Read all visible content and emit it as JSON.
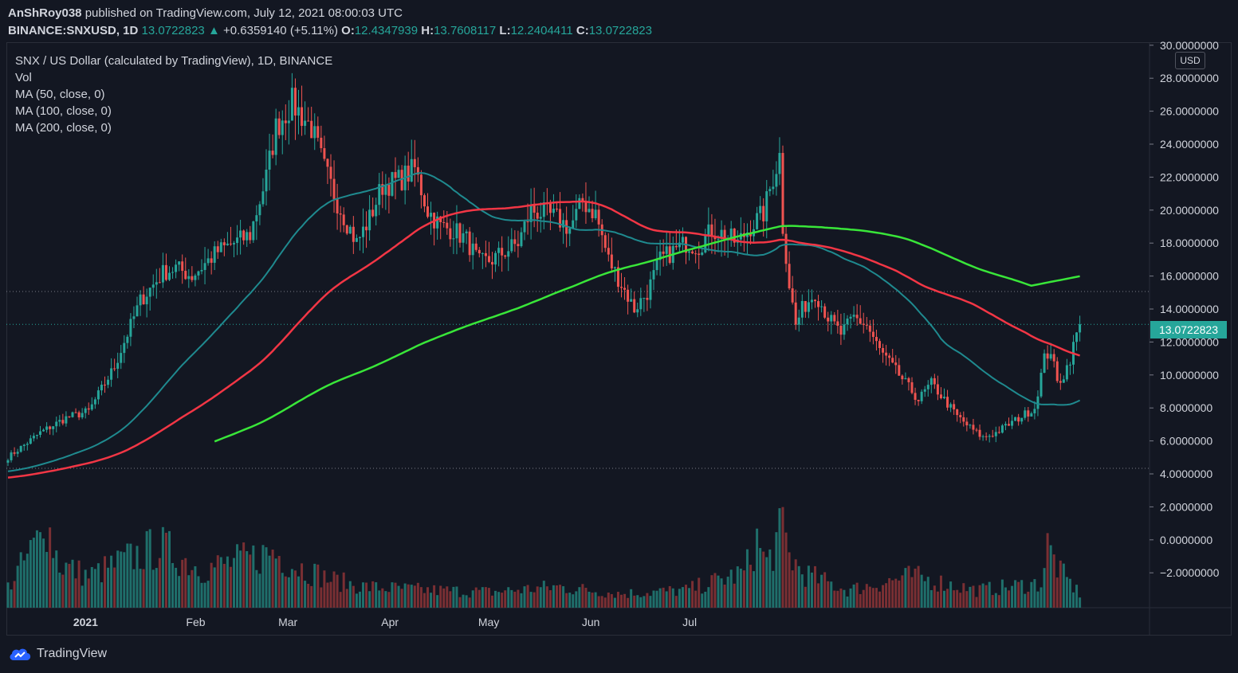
{
  "header": {
    "author": "AnShRoy038",
    "published_text": "published on TradingView.com, July 12, 2021 08:00:03 UTC",
    "symbol": "BINANCE:SNXUSD, 1D",
    "last": "13.0722823",
    "change": "+0.6359140 (+5.11%)",
    "o_label": "O:",
    "o": "12.4347939",
    "h_label": "H:",
    "h": "13.7608117",
    "l_label": "L:",
    "l": "12.2404411",
    "c_label": "C:",
    "c": "13.0722823"
  },
  "legend": {
    "title": "SNX / US Dollar (calculated by TradingView), 1D, BINANCE",
    "vol": "Vol",
    "ma50": "MA (50, close, 0)",
    "ma100": "MA (100, close, 0)",
    "ma200": "MA (200, close, 0)"
  },
  "price_axis": {
    "currency": "USD",
    "last_price_tag": "13.0722823"
  },
  "branding": {
    "name": "TradingView"
  },
  "colors": {
    "up": "#26a69a",
    "down": "#ef5350",
    "ma50": "#1f8a8f",
    "ma100": "#f23645",
    "ma200": "#39e639",
    "background": "#131722"
  },
  "chart_data": {
    "type": "candlestick",
    "title": "SNX / US Dollar (calculated by TradingView), 1D, BINANCE",
    "y_ticks": [
      "30.0000000",
      "28.0000000",
      "26.0000000",
      "24.0000000",
      "22.0000000",
      "20.0000000",
      "18.0000000",
      "16.0000000",
      "14.0000000",
      "12.0000000",
      "10.0000000",
      "8.0000000",
      "6.0000000",
      "4.0000000",
      "2.0000000",
      "0.0000000",
      "−2.0000000"
    ],
    "ylim": [
      -3.5,
      30
    ],
    "x_ticks": [
      "2021",
      "Feb",
      "Mar",
      "Apr",
      "May",
      "Jun",
      "Jul"
    ],
    "anchors_close": [
      [
        0,
        5.0
      ],
      [
        10,
        6.5
      ],
      [
        18,
        7.4
      ],
      [
        25,
        7.8
      ],
      [
        33,
        10.5
      ],
      [
        41,
        14.5
      ],
      [
        48,
        16.2
      ],
      [
        52,
        16.5
      ],
      [
        57,
        16.0
      ],
      [
        65,
        17.5
      ],
      [
        75,
        18.5
      ],
      [
        80,
        22.0
      ],
      [
        83,
        25.0
      ],
      [
        88,
        26.5
      ],
      [
        94,
        25.0
      ],
      [
        98,
        22.5
      ],
      [
        102,
        20.5
      ],
      [
        108,
        18.0
      ],
      [
        112,
        19.5
      ],
      [
        116,
        21.5
      ],
      [
        121,
        21.8
      ],
      [
        126,
        22.5
      ],
      [
        130,
        20.0
      ],
      [
        134,
        19.0
      ],
      [
        138,
        18.8
      ],
      [
        142,
        18.2
      ],
      [
        146,
        16.8
      ],
      [
        150,
        17.0
      ],
      [
        154,
        17.5
      ],
      [
        158,
        18.0
      ],
      [
        162,
        20.0
      ],
      [
        166,
        19.8
      ],
      [
        170,
        19.5
      ],
      [
        174,
        18.9
      ],
      [
        178,
        20.5
      ],
      [
        182,
        19.8
      ],
      [
        186,
        17.0
      ],
      [
        190,
        15.5
      ],
      [
        194,
        14.0
      ],
      [
        198,
        15.0
      ],
      [
        202,
        17.0
      ],
      [
        206,
        17.5
      ],
      [
        210,
        18.0
      ],
      [
        214,
        17.8
      ],
      [
        218,
        18.8
      ],
      [
        222,
        18.5
      ],
      [
        226,
        18.0
      ],
      [
        230,
        19.0
      ],
      [
        234,
        19.8
      ],
      [
        237,
        22.0
      ],
      [
        239,
        23.3
      ],
      [
        240,
        19.0
      ],
      [
        242,
        15.5
      ],
      [
        244,
        13.0
      ],
      [
        246,
        14.0
      ],
      [
        250,
        15.0
      ],
      [
        254,
        13.5
      ],
      [
        258,
        12.5
      ],
      [
        262,
        13.5
      ],
      [
        266,
        13.0
      ],
      [
        270,
        11.5
      ],
      [
        274,
        10.5
      ],
      [
        278,
        9.5
      ],
      [
        282,
        8.5
      ],
      [
        286,
        9.5
      ],
      [
        290,
        8.5
      ],
      [
        294,
        7.5
      ],
      [
        298,
        6.8
      ],
      [
        302,
        6.2
      ],
      [
        306,
        6.5
      ],
      [
        310,
        7.0
      ],
      [
        314,
        7.5
      ],
      [
        318,
        8.0
      ],
      [
        321,
        11.0
      ],
      [
        323,
        11.5
      ],
      [
        325,
        9.5
      ],
      [
        327,
        10.0
      ],
      [
        329,
        11.0
      ],
      [
        331,
        12.5
      ],
      [
        332,
        13.0722823
      ]
    ],
    "volume_profile": [
      [
        0,
        1.2
      ],
      [
        10,
        4.0
      ],
      [
        11,
        5.8
      ],
      [
        13,
        4.2
      ],
      [
        16,
        2.5
      ],
      [
        25,
        1.8
      ],
      [
        40,
        3.0
      ],
      [
        47,
        3.5
      ],
      [
        60,
        2.2
      ],
      [
        75,
        2.8
      ],
      [
        82,
        3.2
      ],
      [
        88,
        2.5
      ],
      [
        100,
        1.6
      ],
      [
        110,
        1.2
      ],
      [
        130,
        1.0
      ],
      [
        150,
        0.9
      ],
      [
        170,
        1.2
      ],
      [
        190,
        0.8
      ],
      [
        210,
        1.0
      ],
      [
        228,
        2.0
      ],
      [
        232,
        3.8
      ],
      [
        235,
        2.5
      ],
      [
        240,
        4.5
      ],
      [
        242,
        3.0
      ],
      [
        246,
        2.0
      ],
      [
        260,
        1.0
      ],
      [
        280,
        1.8
      ],
      [
        300,
        1.0
      ],
      [
        320,
        1.4
      ],
      [
        322,
        3.5
      ],
      [
        326,
        2.0
      ],
      [
        332,
        0.8
      ]
    ],
    "volume_axis_label": "Vol",
    "moving_averages": [
      {
        "name": "MA (50, close, 0)",
        "period": 50
      },
      {
        "name": "MA (100, close, 0)",
        "period": 100
      },
      {
        "name": "MA (200, close, 0)",
        "period": 200
      }
    ],
    "last_price": 13.0722823,
    "grid": false
  }
}
